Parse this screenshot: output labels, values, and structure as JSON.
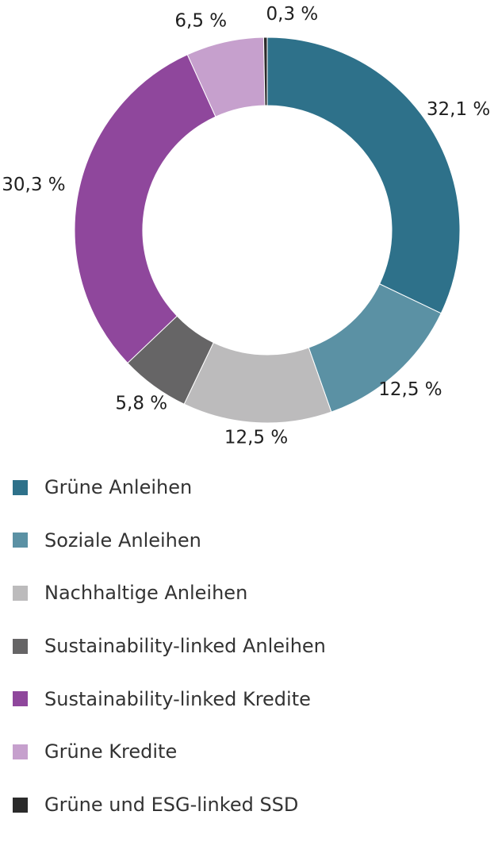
{
  "chart_data": {
    "type": "pie",
    "variant": "donut",
    "title": "",
    "legend_position": "bottom",
    "series": [
      {
        "name": "Grüne Anleihen",
        "value": 32.1,
        "label": "32,1 %",
        "color": "#2e718a"
      },
      {
        "name": "Soziale Anleihen",
        "value": 12.5,
        "label": "12,5 %",
        "color": "#5b91a4"
      },
      {
        "name": "Nachhaltige Anleihen",
        "value": 12.5,
        "label": "12,5 %",
        "color": "#bcbbbc"
      },
      {
        "name": "Sustainability-linked Anleihen",
        "value": 5.8,
        "label": "5,8 %",
        "color": "#666566"
      },
      {
        "name": "Sustainability-linked Kredite",
        "value": 30.3,
        "label": "30,3 %",
        "color": "#8f479c"
      },
      {
        "name": "Grüne Kredite",
        "value": 6.5,
        "label": "6,5 %",
        "color": "#c6a0cd"
      },
      {
        "name": "Grüne und ESG-linked SSD",
        "value": 0.3,
        "label": "0,3 %",
        "color": "#2b2b2b"
      }
    ]
  }
}
